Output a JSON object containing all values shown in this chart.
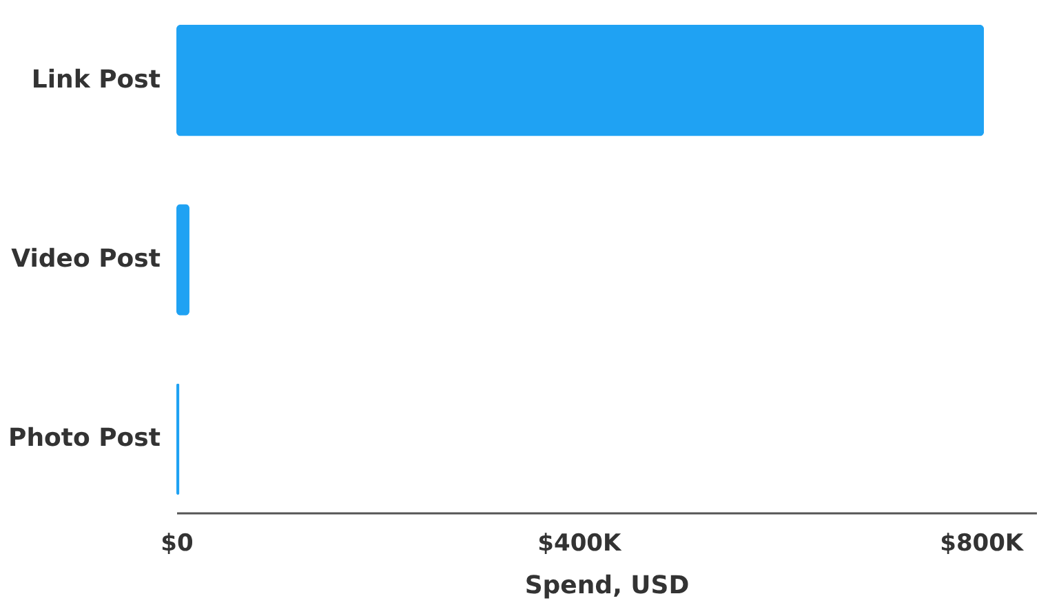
{
  "chart_data": {
    "type": "bar",
    "orientation": "horizontal",
    "categories": [
      "Link Post",
      "Video Post",
      "Photo Post"
    ],
    "values": [
      803000,
      13000,
      3000
    ],
    "color": "#1fa2f3",
    "xlabel": "Spend, USD",
    "xlim": [
      0,
      855000
    ],
    "xticks": [
      {
        "value": 0,
        "label": "$0"
      },
      {
        "value": 400000,
        "label": "$400K"
      },
      {
        "value": 800000,
        "label": "$800K"
      }
    ],
    "grid": false
  }
}
